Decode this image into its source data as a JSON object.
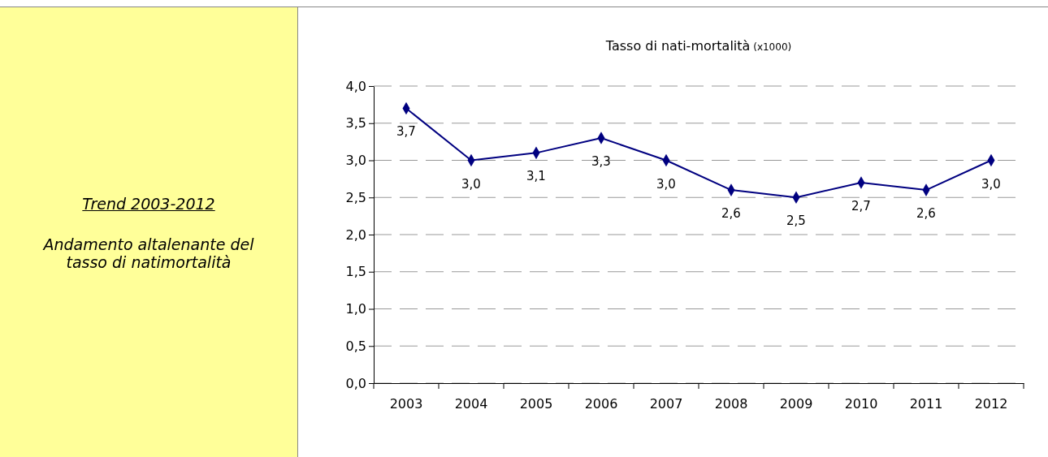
{
  "chart_data": {
    "type": "line",
    "title": "Tasso di nati-mortalità",
    "subtitle": "(x1000)",
    "annotations": [
      "Trend 2003-2012",
      "Andamento altalenante del tasso di natimortalità"
    ],
    "categories": [
      "2003",
      "2004",
      "2005",
      "2006",
      "2007",
      "2008",
      "2009",
      "2010",
      "2011",
      "2012"
    ],
    "series": [
      {
        "color": "#000080",
        "values": [
          3.7,
          3.0,
          3.1,
          3.3,
          3.0,
          2.6,
          2.5,
          2.7,
          2.6,
          3.0
        ],
        "value_labels": [
          "3,7",
          "3,0",
          "3,1",
          "3,3",
          "3,0",
          "2,6",
          "2,5",
          "2,7",
          "2,6",
          "3,0"
        ]
      }
    ],
    "ylim": [
      0,
      4
    ],
    "yticks": [
      {
        "value": 0,
        "label": "0,0"
      },
      {
        "value": 0.5,
        "label": "0,5"
      },
      {
        "value": 1,
        "label": "1,0"
      },
      {
        "value": 1.5,
        "label": "1,5"
      },
      {
        "value": 2,
        "label": "2,0"
      },
      {
        "value": 2.5,
        "label": "2,5"
      },
      {
        "value": 3,
        "label": "3,0"
      },
      {
        "value": 3.5,
        "label": "3,5"
      },
      {
        "value": 4,
        "label": "4,0"
      }
    ],
    "grid": "y",
    "marker": "diamond",
    "line_style": "solid"
  }
}
